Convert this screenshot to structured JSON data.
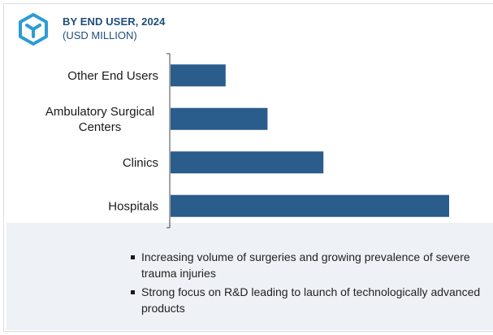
{
  "header": {
    "title": "BY END USER, 2024",
    "subtitle": "(USD MILLION)",
    "logo_icon": "hexagon-cube-icon"
  },
  "chart_data": {
    "type": "bar",
    "orientation": "horizontal",
    "categories": [
      "Other End Users",
      "Ambulatory Surgical Centers",
      "Clinics",
      "Hospitals"
    ],
    "category_lines": [
      [
        "Other End Users"
      ],
      [
        "Ambulatory Surgical",
        "Centers"
      ],
      [
        "Clinics"
      ],
      [
        "Hospitals"
      ]
    ],
    "values": [
      20,
      35,
      55,
      100
    ],
    "value_note": "relative bar lengths (no value axis shown)",
    "xlim": [
      0,
      100
    ],
    "bar_color": "#2a5c8c",
    "title": "BY END USER, 2024",
    "subtitle": "(USD MILLION)",
    "grid": false
  },
  "footer": {
    "bullets": [
      "Increasing volume of surgeries and growing prevalence of severe trauma injuries",
      "Strong focus on R&D leading to launch of technologically advanced products"
    ]
  },
  "colors": {
    "accent": "#1f4e79",
    "logo": "#2e9bd6",
    "bar": "#2a5c8c",
    "footer_bg": "#eef1f6"
  }
}
